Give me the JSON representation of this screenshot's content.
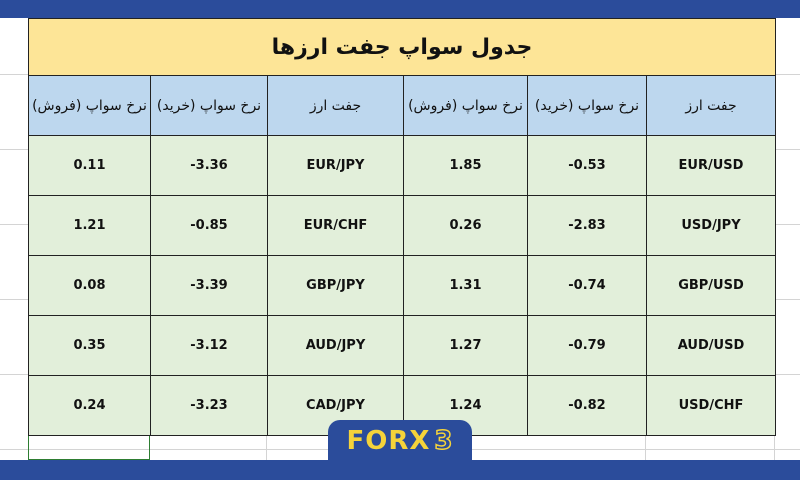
{
  "title": "جدول سواپ جفت ارزها",
  "headers": [
    "جفت ارز",
    "نرخ سواپ (خرید)",
    "نرخ سواپ (فروش)",
    "جفت ارز",
    "نرخ سواپ (خرید)",
    "نرخ سواپ (فروش)"
  ],
  "rows": [
    [
      "EUR/USD",
      "-0.53",
      "1.85",
      "EUR/JPY",
      "-3.36",
      "0.11"
    ],
    [
      "USD/JPY",
      "-2.83",
      "0.26",
      "EUR/CHF",
      "-0.85",
      "1.21"
    ],
    [
      "GBP/USD",
      "-0.74",
      "1.31",
      "GBP/JPY",
      "-3.39",
      "0.08"
    ],
    [
      "AUD/USD",
      "-0.79",
      "1.27",
      "AUD/JPY",
      "-3.12",
      "0.35"
    ],
    [
      "USD/CHF",
      "-0.82",
      "1.24",
      "CAD/JPY",
      "-3.23",
      "0.24"
    ]
  ],
  "logo": {
    "text": "FORX",
    "digit": "3"
  },
  "colors": {
    "brand_blue": "#2b4c9b",
    "title_bg": "#fde597",
    "header_bg": "#bdd7ee",
    "cell_bg": "#e2efda",
    "logo_yellow": "#f5d33a"
  }
}
